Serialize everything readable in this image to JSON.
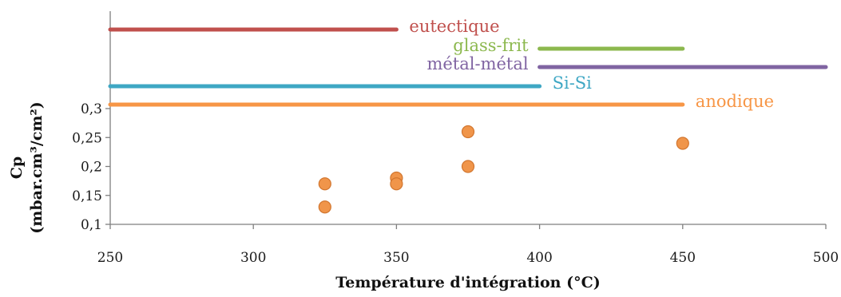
{
  "chart_data": {
    "type": "scatter",
    "xlabel": "Température d'intégration (°C)",
    "ylabel_line1": "Cp",
    "ylabel_line2": "(mbar.cm³/cm²)",
    "xlim": [
      250,
      500
    ],
    "ylim": [
      0.1,
      0.3
    ],
    "x_ticks": [
      250,
      300,
      350,
      400,
      450,
      500
    ],
    "x_tick_labels": [
      "250",
      "300",
      "350",
      "400",
      "450",
      "500"
    ],
    "y_ticks": [
      0.1,
      0.15,
      0.2,
      0.25,
      0.3
    ],
    "y_tick_labels": [
      "0,1",
      "0,15",
      "0,2",
      "0,25",
      "0,3"
    ],
    "grid": false,
    "points": [
      {
        "x": 325,
        "y": 0.17
      },
      {
        "x": 325,
        "y": 0.13
      },
      {
        "x": 350,
        "y": 0.18
      },
      {
        "x": 350,
        "y": 0.17
      },
      {
        "x": 375,
        "y": 0.26
      },
      {
        "x": 375,
        "y": 0.2
      },
      {
        "x": 450,
        "y": 0.24
      }
    ],
    "point_color": "#f0954a",
    "point_edge_color": "#d2762f",
    "ranges": [
      {
        "label": "eutectique",
        "start": 250,
        "end": 350,
        "color": "#c0504d",
        "label_side": "right"
      },
      {
        "label": "glass-frit",
        "start": 400,
        "end": 450,
        "color": "#8cb84e",
        "label_side": "left"
      },
      {
        "label": "métal-métal",
        "start": 400,
        "end": 500,
        "color": "#8064a2",
        "label_side": "left"
      },
      {
        "label": "Si-Si",
        "start": 250,
        "end": 400,
        "color": "#3ea7c4",
        "label_side": "right"
      },
      {
        "label": "anodique",
        "start": 250,
        "end": 450,
        "color": "#f79646",
        "label_side": "right"
      }
    ]
  }
}
